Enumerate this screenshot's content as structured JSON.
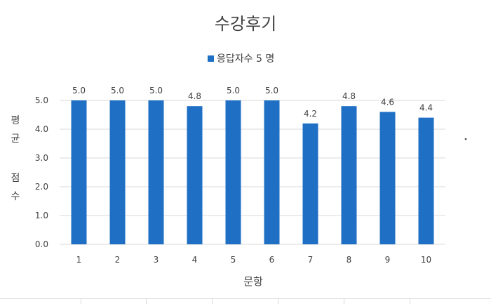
{
  "chart_data": {
    "type": "bar",
    "title": "수강후기",
    "xlabel": "문항",
    "ylabel": "평균 점수",
    "categories": [
      "1",
      "2",
      "3",
      "4",
      "5",
      "6",
      "7",
      "8",
      "9",
      "10"
    ],
    "series": [
      {
        "name": "응답자수 5 명",
        "values": [
          5.0,
          5.0,
          5.0,
          4.8,
          5.0,
          5.0,
          4.2,
          4.8,
          4.6,
          4.4
        ],
        "labels": [
          "5.0",
          "5.0",
          "5.0",
          "4.8",
          "5.0",
          "5.0",
          "4.2",
          "4.8",
          "4.6",
          "4.4"
        ],
        "color": "#1f6fc5"
      }
    ],
    "ylim": [
      0,
      5
    ],
    "yticks": [
      "0.0",
      "1.0",
      "2.0",
      "3.0",
      "4.0",
      "5.0"
    ],
    "grid": true,
    "legend_position": "top"
  },
  "colors": {
    "bar": "#1f6fc5",
    "grid": "#d9d9d9",
    "text": "#404040",
    "title": "#404040"
  }
}
